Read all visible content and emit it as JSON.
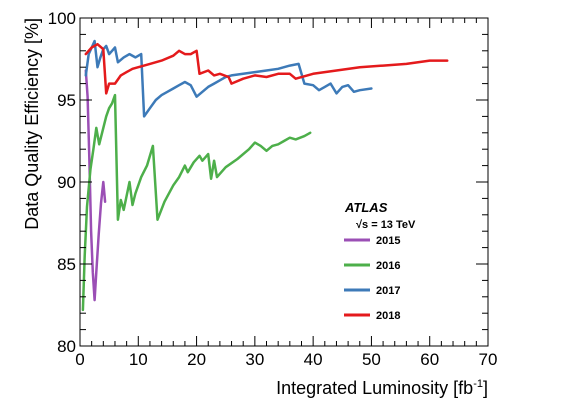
{
  "chart_data": {
    "type": "line",
    "xlabel": "Integrated Luminosity [fb",
    "xlabel_sup": "-1",
    "xlabel_end": "]",
    "ylabel": "Data Quality Efficiency [%]",
    "xlim": [
      0,
      70
    ],
    "ylim": [
      80,
      100
    ],
    "x_ticks": [
      0,
      10,
      20,
      30,
      40,
      50,
      60,
      70
    ],
    "y_ticks": [
      80,
      85,
      90,
      95,
      100
    ],
    "grid": false,
    "legend_position": "right-center",
    "annotation_experiment": "ATLAS",
    "annotation_energy": "√s = 13 TeV",
    "series": [
      {
        "name": "2015",
        "color": "#9b4fb5",
        "points": [
          [
            1.0,
            96.8
          ],
          [
            1.3,
            95.2
          ],
          [
            1.6,
            91.5
          ],
          [
            1.9,
            87.0
          ],
          [
            2.2,
            84.5
          ],
          [
            2.5,
            82.8
          ],
          [
            2.8,
            84.5
          ],
          [
            3.2,
            86.8
          ],
          [
            3.6,
            88.7
          ],
          [
            4.0,
            90.0
          ],
          [
            4.3,
            88.8
          ]
        ]
      },
      {
        "name": "2016",
        "color": "#4daf4a",
        "points": [
          [
            0.5,
            82.2
          ],
          [
            0.8,
            85.5
          ],
          [
            1.2,
            88.5
          ],
          [
            1.8,
            90.8
          ],
          [
            2.3,
            92.0
          ],
          [
            2.8,
            93.3
          ],
          [
            3.3,
            92.3
          ],
          [
            3.8,
            93.0
          ],
          [
            4.5,
            94.0
          ],
          [
            5.0,
            94.5
          ],
          [
            5.5,
            94.8
          ],
          [
            6.0,
            95.3
          ],
          [
            6.5,
            87.7
          ],
          [
            7.0,
            88.9
          ],
          [
            7.5,
            88.3
          ],
          [
            8.5,
            90.0
          ],
          [
            9.0,
            88.6
          ],
          [
            9.5,
            89.3
          ],
          [
            10.5,
            90.3
          ],
          [
            11.5,
            91.0
          ],
          [
            12.5,
            92.2
          ],
          [
            13.3,
            87.7
          ],
          [
            14.5,
            88.8
          ],
          [
            16.0,
            89.8
          ],
          [
            17.0,
            90.3
          ],
          [
            18.0,
            91.0
          ],
          [
            18.5,
            90.6
          ],
          [
            19.5,
            91.2
          ],
          [
            20.5,
            91.6
          ],
          [
            21.0,
            91.3
          ],
          [
            22.0,
            91.7
          ],
          [
            22.5,
            90.2
          ],
          [
            23.0,
            91.3
          ],
          [
            23.5,
            90.3
          ],
          [
            25.0,
            90.9
          ],
          [
            27.0,
            91.4
          ],
          [
            29.0,
            92.0
          ],
          [
            30.0,
            92.4
          ],
          [
            31.0,
            92.2
          ],
          [
            32.0,
            91.9
          ],
          [
            33.0,
            92.2
          ],
          [
            34.0,
            92.3
          ],
          [
            35.0,
            92.5
          ],
          [
            36.0,
            92.7
          ],
          [
            37.0,
            92.6
          ],
          [
            38.5,
            92.8
          ],
          [
            39.5,
            93.0
          ]
        ]
      },
      {
        "name": "2017",
        "color": "#3d7ab8",
        "points": [
          [
            1.0,
            96.5
          ],
          [
            1.5,
            97.8
          ],
          [
            2.0,
            98.2
          ],
          [
            2.5,
            98.6
          ],
          [
            3.0,
            97.0
          ],
          [
            3.5,
            97.6
          ],
          [
            4.0,
            98.1
          ],
          [
            4.5,
            98.3
          ],
          [
            5.0,
            97.8
          ],
          [
            5.5,
            98.0
          ],
          [
            6.0,
            98.2
          ],
          [
            6.5,
            97.3
          ],
          [
            7.5,
            97.6
          ],
          [
            8.5,
            97.8
          ],
          [
            9.5,
            97.6
          ],
          [
            10.5,
            97.8
          ],
          [
            11.0,
            94.0
          ],
          [
            12.0,
            94.5
          ],
          [
            13.0,
            95.0
          ],
          [
            14.0,
            95.3
          ],
          [
            15.0,
            95.5
          ],
          [
            16.0,
            95.7
          ],
          [
            17.0,
            95.9
          ],
          [
            18.0,
            96.1
          ],
          [
            19.0,
            95.9
          ],
          [
            20.0,
            95.2
          ],
          [
            21.0,
            95.5
          ],
          [
            22.0,
            95.8
          ],
          [
            23.0,
            96.0
          ],
          [
            24.0,
            96.2
          ],
          [
            25.0,
            96.4
          ],
          [
            26.0,
            96.5
          ],
          [
            28.0,
            96.6
          ],
          [
            30.0,
            96.7
          ],
          [
            32.0,
            96.8
          ],
          [
            34.0,
            96.9
          ],
          [
            36.0,
            97.1
          ],
          [
            37.5,
            97.2
          ],
          [
            38.5,
            96.0
          ],
          [
            40.0,
            95.9
          ],
          [
            41.0,
            95.6
          ],
          [
            42.0,
            95.8
          ],
          [
            43.0,
            96.0
          ],
          [
            44.0,
            95.4
          ],
          [
            45.0,
            95.8
          ],
          [
            46.0,
            95.9
          ],
          [
            47.0,
            95.5
          ],
          [
            48.0,
            95.6
          ],
          [
            50.0,
            95.7
          ]
        ]
      },
      {
        "name": "2018",
        "color": "#e41a1c",
        "points": [
          [
            1.0,
            97.8
          ],
          [
            2.0,
            98.2
          ],
          [
            3.0,
            98.4
          ],
          [
            4.0,
            98.1
          ],
          [
            4.5,
            95.4
          ],
          [
            5.0,
            96.0
          ],
          [
            6.0,
            96.0
          ],
          [
            7.0,
            96.5
          ],
          [
            8.0,
            96.7
          ],
          [
            9.0,
            96.9
          ],
          [
            10.0,
            97.0
          ],
          [
            12.0,
            97.2
          ],
          [
            14.0,
            97.4
          ],
          [
            16.0,
            97.7
          ],
          [
            17.0,
            98.0
          ],
          [
            18.0,
            97.8
          ],
          [
            19.0,
            97.8
          ],
          [
            20.0,
            98.0
          ],
          [
            20.5,
            96.6
          ],
          [
            22.0,
            96.8
          ],
          [
            23.0,
            96.5
          ],
          [
            24.0,
            96.6
          ],
          [
            25.5,
            96.4
          ],
          [
            26.0,
            96.0
          ],
          [
            28.0,
            96.3
          ],
          [
            30.0,
            96.5
          ],
          [
            32.0,
            96.4
          ],
          [
            34.0,
            96.6
          ],
          [
            36.0,
            96.6
          ],
          [
            37.0,
            96.3
          ],
          [
            40.0,
            96.6
          ],
          [
            44.0,
            96.8
          ],
          [
            48.0,
            97.0
          ],
          [
            52.0,
            97.1
          ],
          [
            56.0,
            97.2
          ],
          [
            60.0,
            97.4
          ],
          [
            63.0,
            97.4
          ]
        ]
      }
    ]
  }
}
